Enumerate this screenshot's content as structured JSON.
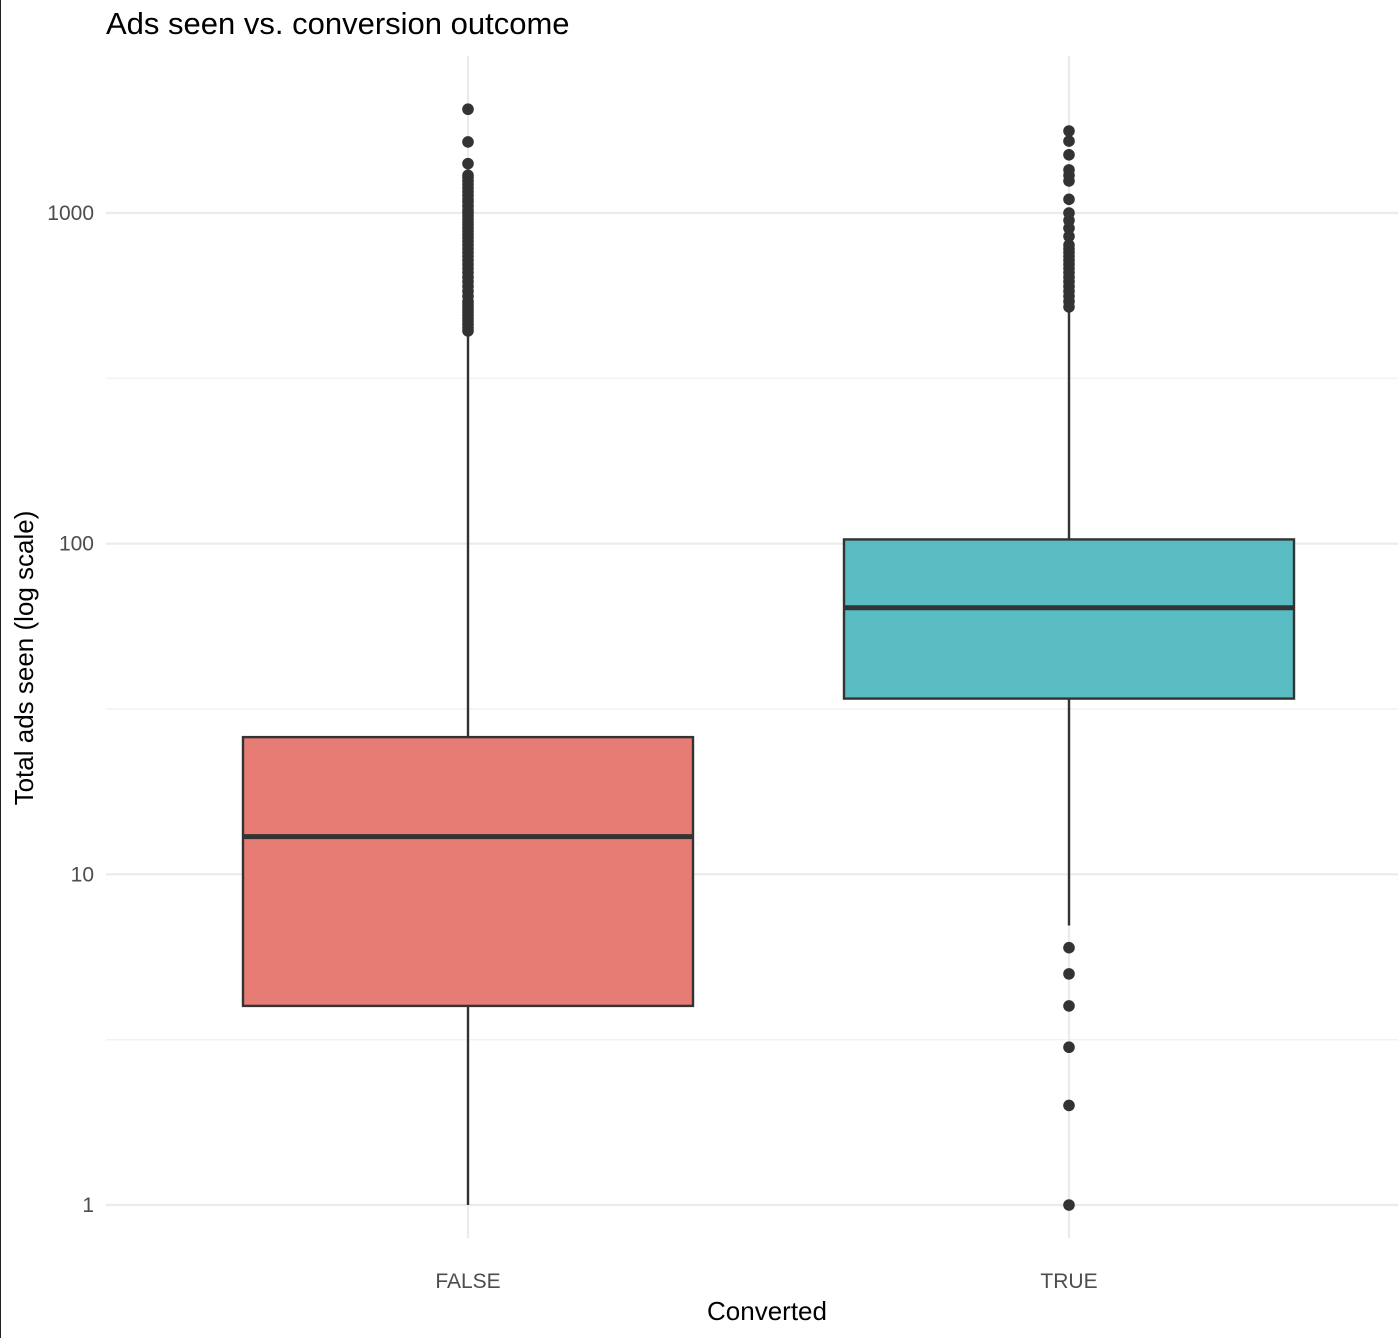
{
  "chart_data": {
    "type": "box",
    "title": "Ads seen vs. conversion outcome",
    "xlabel": "Converted",
    "ylabel": "Total ads seen (log scale)",
    "y_scale": "log10",
    "ylim": [
      0.73,
      2300
    ],
    "y_ticks": [
      1,
      10,
      100,
      1000
    ],
    "y_tick_labels": [
      "1",
      "10",
      "100",
      "1000"
    ],
    "grid": true,
    "legend": "none",
    "categories": [
      "FALSE",
      "TRUE"
    ],
    "boxes": [
      {
        "category": "FALSE",
        "color": "#E67C73",
        "whisker_low": 1,
        "q1": 4,
        "median": 13,
        "q3": 26,
        "whisker_high": 430,
        "outliers": [
          440,
          450,
          460,
          470,
          480,
          490,
          500,
          510,
          520,
          530,
          540,
          560,
          580,
          600,
          620,
          640,
          660,
          680,
          700,
          720,
          740,
          760,
          780,
          800,
          820,
          840,
          860,
          880,
          900,
          920,
          940,
          960,
          980,
          1000,
          1020,
          1050,
          1080,
          1100,
          1130,
          1160,
          1190,
          1220,
          1250,
          1280,
          1300,
          1410,
          1640,
          2060
        ]
      },
      {
        "category": "TRUE",
        "color": "#58BCC2",
        "whisker_low": 7,
        "q1": 34,
        "median": 64,
        "q3": 103,
        "whisker_high": 510,
        "outliers": [
          1,
          2,
          3,
          4,
          5,
          6,
          520,
          540,
          560,
          580,
          600,
          620,
          640,
          660,
          680,
          700,
          720,
          740,
          760,
          780,
          800,
          850,
          900,
          950,
          1000,
          1100,
          1250,
          1300,
          1350,
          1500,
          1650,
          1770
        ]
      }
    ]
  }
}
